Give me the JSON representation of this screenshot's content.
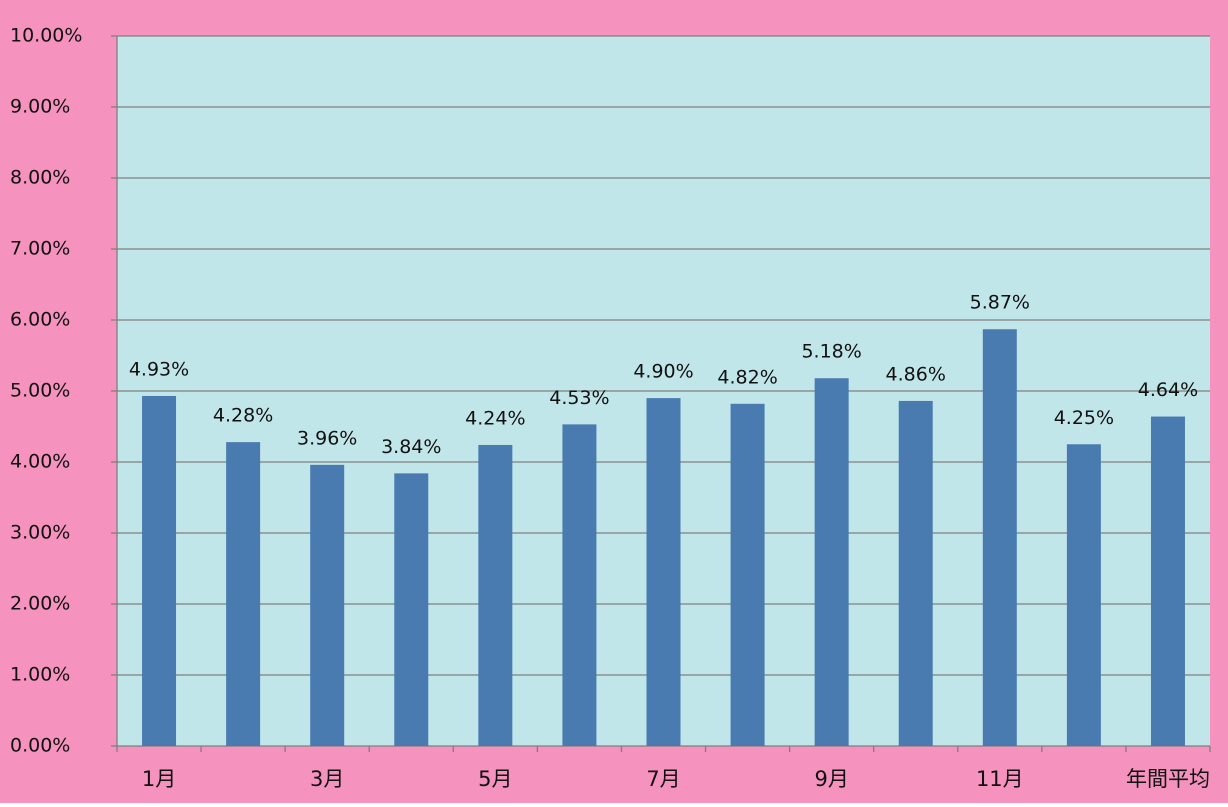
{
  "chart_data": {
    "type": "bar",
    "categories": [
      "1月",
      null,
      "3月",
      null,
      "5月",
      null,
      "7月",
      null,
      "9月",
      null,
      "11月",
      null,
      "年間平均"
    ],
    "values": [
      4.93,
      4.28,
      3.96,
      3.84,
      4.24,
      4.53,
      4.9,
      4.82,
      5.18,
      4.86,
      5.87,
      4.25,
      4.64
    ],
    "value_labels": [
      "4.93%",
      "4.28%",
      "3.96%",
      "3.84%",
      "4.24%",
      "4.53%",
      "4.90%",
      "4.82%",
      "5.18%",
      "4.86%",
      "5.87%",
      "4.25%",
      "4.64%"
    ],
    "color": "#4a7bb0",
    "ylim": [
      0,
      10
    ],
    "yticks": [
      {
        "value": 0,
        "label": "0.00%"
      },
      {
        "value": 1,
        "label": "1.00%"
      },
      {
        "value": 2,
        "label": "2.00%"
      },
      {
        "value": 3,
        "label": "3.00%"
      },
      {
        "value": 4,
        "label": "4.00%"
      },
      {
        "value": 5,
        "label": "5.00%"
      },
      {
        "value": 6,
        "label": "6.00%"
      },
      {
        "value": 7,
        "label": "7.00%"
      },
      {
        "value": 8,
        "label": "8.00%"
      },
      {
        "value": 9,
        "label": "9.00%"
      },
      {
        "value": 10,
        "label": "10.00%"
      }
    ],
    "grid": true
  }
}
